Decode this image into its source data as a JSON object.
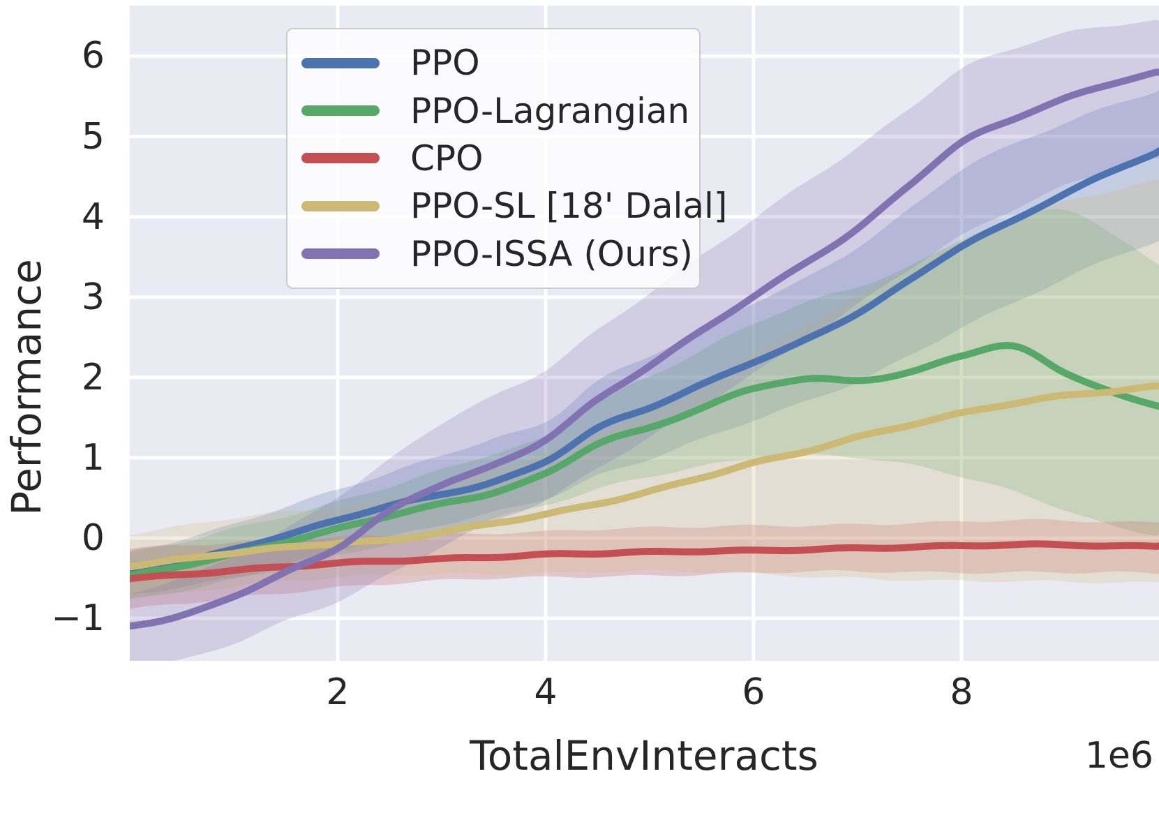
{
  "chart_data": {
    "type": "line",
    "xlabel": "TotalEnvInteracts",
    "ylabel": "Performance",
    "x_offset_label": "1e6",
    "x_unit_multiplier": 1000000,
    "xlim": [
      0,
      9.9
    ],
    "ylim": [
      -1.53,
      6.63
    ],
    "xtick_values": [
      2,
      4,
      6,
      8
    ],
    "xtick_labels": [
      "2",
      "4",
      "6",
      "8"
    ],
    "ytick_values": [
      6,
      5,
      4,
      3,
      2,
      1,
      0,
      -1
    ],
    "ytick_labels": [
      "6",
      "5",
      "4",
      "3",
      "2",
      "1",
      "0",
      "−1"
    ],
    "grid": true,
    "legend_position": "upper-left",
    "x": [
      0,
      0.5,
      1,
      1.5,
      2,
      2.5,
      3,
      3.5,
      4,
      4.5,
      5,
      5.5,
      6,
      6.5,
      7,
      7.5,
      8,
      8.5,
      9,
      9.5,
      9.9
    ],
    "series": [
      {
        "name": "PPO",
        "color": "#4C72B0",
        "mean": [
          -0.42,
          -0.3,
          -0.15,
          0.03,
          0.22,
          0.41,
          0.55,
          0.7,
          0.95,
          1.36,
          1.62,
          1.91,
          2.2,
          2.47,
          2.8,
          3.2,
          3.63,
          3.95,
          4.3,
          4.6,
          4.82
        ],
        "lo": [
          -0.7,
          -0.6,
          -0.48,
          -0.33,
          -0.16,
          0.0,
          0.16,
          0.33,
          0.5,
          0.78,
          0.98,
          1.22,
          1.46,
          1.7,
          1.96,
          2.28,
          2.62,
          2.92,
          3.22,
          3.52,
          3.7
        ],
        "hi": [
          -0.16,
          -0.02,
          0.16,
          0.38,
          0.6,
          0.82,
          1.04,
          1.24,
          1.44,
          1.94,
          2.26,
          2.6,
          2.94,
          3.24,
          3.62,
          4.08,
          4.58,
          4.9,
          5.18,
          5.42,
          5.58
        ]
      },
      {
        "name": "PPO-Lagrangian",
        "color": "#55A868",
        "mean": [
          -0.48,
          -0.35,
          -0.2,
          -0.04,
          0.12,
          0.28,
          0.42,
          0.56,
          0.8,
          1.18,
          1.38,
          1.62,
          1.86,
          1.97,
          1.96,
          2.06,
          2.28,
          2.39,
          2.06,
          1.78,
          1.64
        ],
        "lo": [
          -0.76,
          -0.66,
          -0.53,
          -0.38,
          -0.22,
          -0.06,
          0.1,
          0.25,
          0.4,
          0.6,
          0.76,
          0.9,
          1.0,
          1.04,
          1.0,
          0.9,
          0.76,
          0.58,
          0.36,
          0.14,
          0.04
        ],
        "hi": [
          -0.2,
          -0.06,
          0.12,
          0.28,
          0.46,
          0.64,
          0.84,
          1.04,
          1.26,
          1.72,
          2.02,
          2.34,
          2.66,
          2.92,
          3.12,
          3.38,
          3.72,
          3.96,
          4.1,
          3.72,
          3.4
        ]
      },
      {
        "name": "CPO",
        "color": "#C44E52",
        "mean": [
          -0.5,
          -0.45,
          -0.4,
          -0.36,
          -0.32,
          -0.29,
          -0.26,
          -0.23,
          -0.2,
          -0.19,
          -0.18,
          -0.17,
          -0.16,
          -0.14,
          -0.12,
          -0.11,
          -0.1,
          -0.09,
          -0.09,
          -0.1,
          -0.1
        ],
        "lo": [
          -0.9,
          -0.82,
          -0.74,
          -0.67,
          -0.61,
          -0.57,
          -0.54,
          -0.51,
          -0.49,
          -0.47,
          -0.46,
          -0.45,
          -0.44,
          -0.43,
          -0.42,
          -0.42,
          -0.42,
          -0.42,
          -0.43,
          -0.44,
          -0.45
        ],
        "hi": [
          -0.12,
          -0.08,
          -0.05,
          -0.02,
          0.0,
          0.02,
          0.04,
          0.07,
          0.09,
          0.11,
          0.12,
          0.13,
          0.15,
          0.16,
          0.18,
          0.19,
          0.2,
          0.21,
          0.21,
          0.2,
          0.2
        ]
      },
      {
        "name": "PPO-SL [18' Dalal]",
        "color": "#CCB974",
        "mean": [
          -0.35,
          -0.27,
          -0.19,
          -0.12,
          -0.06,
          -0.02,
          0.08,
          0.18,
          0.29,
          0.42,
          0.58,
          0.76,
          0.94,
          1.08,
          1.25,
          1.4,
          1.55,
          1.68,
          1.78,
          1.84,
          1.89
        ],
        "lo": [
          -0.75,
          -0.67,
          -0.6,
          -0.54,
          -0.5,
          -0.47,
          -0.45,
          -0.44,
          -0.43,
          -0.42,
          -0.42,
          -0.43,
          -0.45,
          -0.47,
          -0.49,
          -0.52,
          -0.54,
          -0.55,
          -0.55,
          -0.55,
          -0.55
        ],
        "hi": [
          0.05,
          0.14,
          0.24,
          0.32,
          0.39,
          0.49,
          0.65,
          0.85,
          1.05,
          1.31,
          1.6,
          1.95,
          2.3,
          2.66,
          3.0,
          3.36,
          3.7,
          4.0,
          4.2,
          4.35,
          4.46
        ]
      },
      {
        "name": "PPO-ISSA (Ours)",
        "color": "#8172B2",
        "mean": [
          -1.1,
          -0.97,
          -0.72,
          -0.42,
          -0.12,
          0.33,
          0.66,
          0.9,
          1.23,
          1.73,
          2.15,
          2.58,
          3.0,
          3.42,
          3.85,
          4.4,
          4.93,
          5.22,
          5.47,
          5.67,
          5.8
        ],
        "lo": [
          -1.62,
          -1.53,
          -1.32,
          -1.04,
          -0.78,
          -0.44,
          -0.1,
          0.2,
          0.46,
          0.86,
          1.26,
          1.66,
          2.06,
          2.46,
          2.9,
          3.34,
          3.76,
          4.1,
          4.4,
          4.6,
          4.72
        ],
        "hi": [
          -0.7,
          -0.5,
          -0.22,
          0.12,
          0.52,
          0.97,
          1.42,
          1.76,
          2.1,
          2.6,
          3.06,
          3.52,
          3.96,
          4.42,
          4.86,
          5.36,
          5.85,
          6.1,
          6.28,
          6.38,
          6.44
        ]
      }
    ],
    "legend_labels": [
      "PPO",
      "PPO-Lagrangian",
      "CPO",
      "PPO-SL [18' Dalal]",
      "PPO-ISSA (Ours)"
    ],
    "colors": {
      "axes_background": "#EAEAF2",
      "gridline": "#FFFFFF",
      "text": "#262626",
      "legend_background": "rgba(255,255,255,0.8)",
      "legend_border": "#CCCCCC"
    },
    "band_opacity": 0.24,
    "line_width": 10
  }
}
